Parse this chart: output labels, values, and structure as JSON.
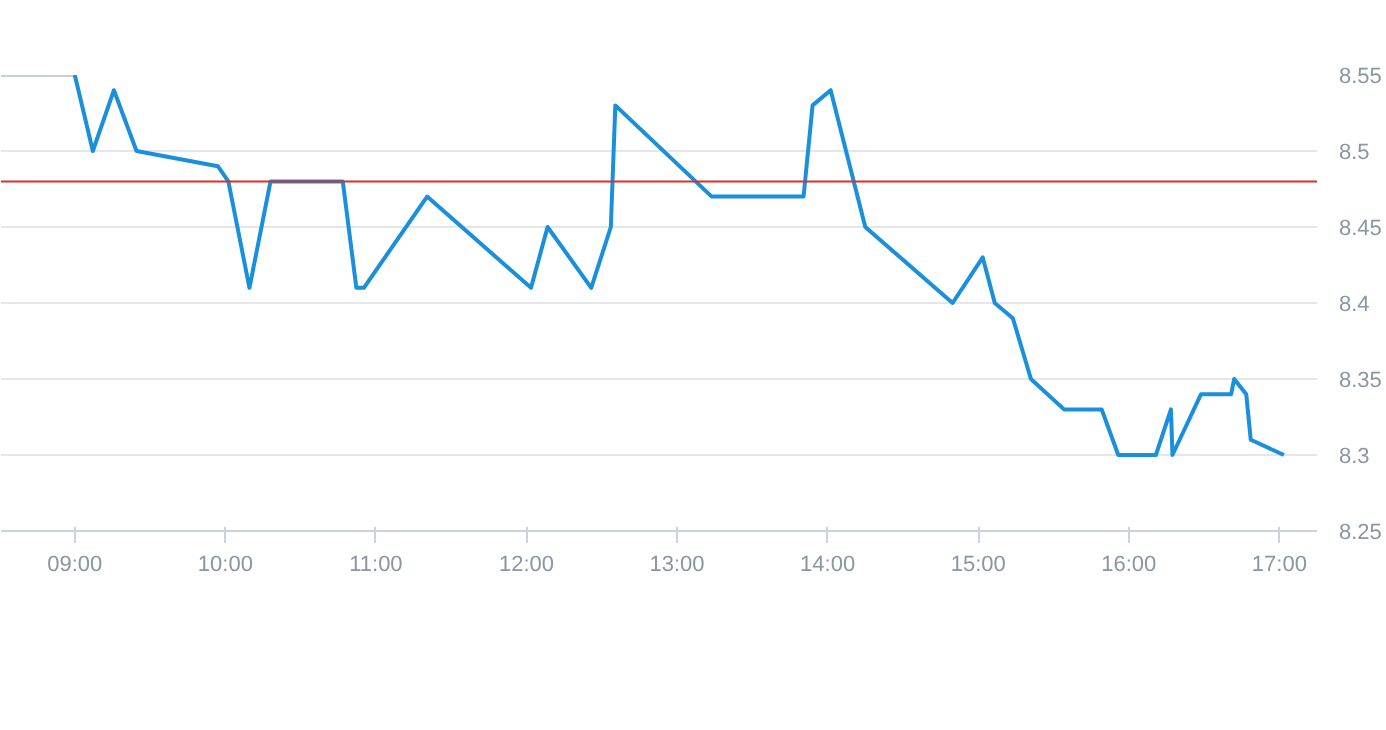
{
  "chart_data": {
    "type": "line",
    "xlim": [
      8.51,
      17.25
    ],
    "ylim": [
      8.25,
      8.55
    ],
    "xticks": [
      {
        "value": 9,
        "label": "09:00"
      },
      {
        "value": 10,
        "label": "10:00"
      },
      {
        "value": 11,
        "label": "11:00"
      },
      {
        "value": 12,
        "label": "12:00"
      },
      {
        "value": 13,
        "label": "13:00"
      },
      {
        "value": 14,
        "label": "14:00"
      },
      {
        "value": 15,
        "label": "15:00"
      },
      {
        "value": 16,
        "label": "16:00"
      },
      {
        "value": 17,
        "label": "17:00"
      }
    ],
    "yticks": [
      {
        "value": 8.25,
        "label": "8.25"
      },
      {
        "value": 8.3,
        "label": "8.3"
      },
      {
        "value": 8.35,
        "label": "8.35"
      },
      {
        "value": 8.4,
        "label": "8.4"
      },
      {
        "value": 8.45,
        "label": "8.45"
      },
      {
        "value": 8.5,
        "label": "8.5"
      },
      {
        "value": 8.55,
        "label": "8.55"
      }
    ],
    "grid": "y",
    "marker": "none",
    "line_style": "solid",
    "ref_lines": [
      {
        "axis": "y",
        "value": 8.48,
        "label": null,
        "color": "#d9302c"
      }
    ],
    "series": [
      {
        "color": "#c8d0da",
        "x": [
          8.51,
          9.0
        ],
        "values": [
          8.55,
          8.55
        ]
      },
      {
        "color": "#1a8fdb",
        "x": [
          9.0,
          9.12,
          9.26,
          9.41,
          9.95,
          10.02,
          10.16,
          10.3,
          10.78,
          10.87,
          10.92,
          11.34,
          12.03,
          12.14,
          12.43,
          12.56,
          12.59,
          13.23,
          13.84,
          13.9,
          14.02,
          14.25,
          14.83,
          15.03,
          15.11,
          15.23,
          15.35,
          15.57,
          15.82,
          15.93,
          16.18,
          16.28,
          16.29,
          16.48,
          16.68,
          16.7,
          16.78,
          16.81,
          17.03
        ],
        "values": [
          8.55,
          8.5,
          8.54,
          8.5,
          8.49,
          8.48,
          8.41,
          8.48,
          8.48,
          8.41,
          8.41,
          8.47,
          8.41,
          8.45,
          8.41,
          8.45,
          8.53,
          8.47,
          8.47,
          8.53,
          8.54,
          8.45,
          8.4,
          8.43,
          8.4,
          8.39,
          8.35,
          8.33,
          8.33,
          8.3,
          8.3,
          8.33,
          8.3,
          8.34,
          8.34,
          8.35,
          8.34,
          8.31,
          8.3
        ]
      }
    ]
  }
}
